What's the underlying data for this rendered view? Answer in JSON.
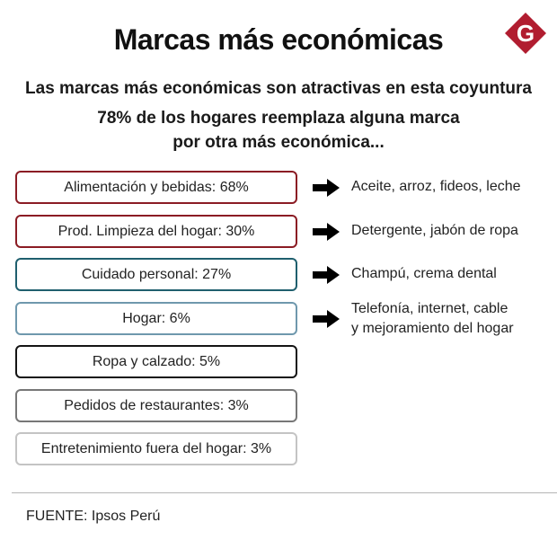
{
  "header": {
    "title": "Marcas más económicas",
    "logo_letter": "G",
    "logo_color": "#b11d30"
  },
  "subtitle": "Las marcas más económicas son atractivas en esta coyuntura",
  "highlight": {
    "line1": "78% de los hogares reemplaza alguna marca",
    "line2": "por otra más económica..."
  },
  "categories": [
    {
      "label": "Alimentación y bebidas: 68%",
      "border_color": "#8b1c24",
      "examples": [
        "Aceite, arroz, fideos, leche"
      ]
    },
    {
      "label": "Prod. Limpieza del hogar: 30%",
      "border_color": "#8b1c24",
      "examples": [
        "Detergente, jabón de ropa"
      ]
    },
    {
      "label": "Cuidado personal: 27%",
      "border_color": "#1f5f6e",
      "examples": [
        "Champú, crema dental"
      ]
    },
    {
      "label": "Hogar: 6%",
      "border_color": "#6f98ad",
      "examples": [
        "Telefonía, internet, cable",
        "y mejoramiento del hogar"
      ]
    },
    {
      "label": "Ropa y calzado: 5%",
      "border_color": "#141414",
      "examples": []
    },
    {
      "label": "Pedidos de restaurantes: 3%",
      "border_color": "#777777",
      "examples": []
    },
    {
      "label": "Entretenimiento fuera del hogar: 3%",
      "border_color": "#c4c4c4",
      "examples": []
    }
  ],
  "arrow_icon": "right-arrow-icon",
  "footer": {
    "source": "FUENTE: Ipsos Perú"
  }
}
